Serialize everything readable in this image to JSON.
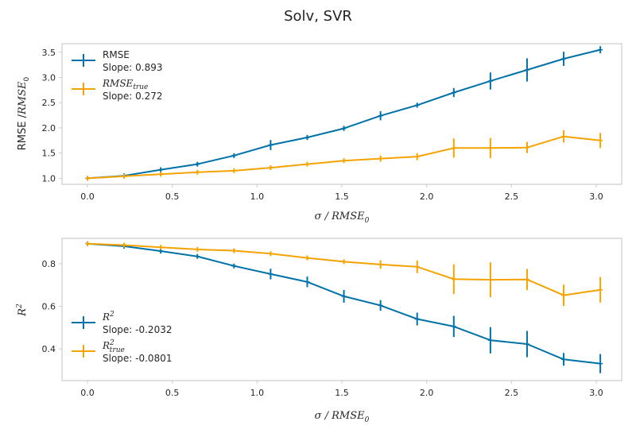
{
  "figure_title": "Solv, SVR",
  "colors": {
    "series_blue": "#0072a8",
    "series_orange": "#f5a300",
    "axes_frame": "#cccccc"
  },
  "chart_data": [
    {
      "type": "line",
      "xlabel": "σ / RMSE₀",
      "ylabel": "RMSE /RMSE₀",
      "xlim": [
        -0.15,
        3.15
      ],
      "ylim": [
        0.88,
        3.67
      ],
      "x_ticks": [
        "0.0",
        "0.5",
        "1.0",
        "1.5",
        "2.0",
        "2.5",
        "3.0"
      ],
      "y_ticks": [
        "1.0",
        "1.5",
        "2.0",
        "2.5",
        "3.0",
        "3.5"
      ],
      "legend_position": "upper left",
      "x": [
        0.0,
        0.216,
        0.432,
        0.648,
        0.864,
        1.08,
        1.296,
        1.512,
        1.728,
        1.944,
        2.16,
        2.376,
        2.592,
        2.808,
        3.024
      ],
      "series": [
        {
          "name": "RMSE",
          "label_math": "RMSE",
          "slope_text": "Slope: 0.893",
          "color": "#0072a8",
          "values": [
            1.0,
            1.05,
            1.17,
            1.28,
            1.45,
            1.66,
            1.81,
            1.99,
            2.24,
            2.45,
            2.7,
            2.93,
            3.15,
            3.37,
            3.55
          ],
          "errors": [
            0.01,
            0.02,
            0.03,
            0.03,
            0.03,
            0.1,
            0.05,
            0.05,
            0.09,
            0.05,
            0.09,
            0.17,
            0.23,
            0.14,
            0.07
          ]
        },
        {
          "name": "RMSE_true",
          "label_math": "RMSEtrue",
          "slope_text": "Slope: 0.272",
          "color": "#f5a300",
          "values": [
            1.0,
            1.04,
            1.08,
            1.12,
            1.15,
            1.21,
            1.28,
            1.35,
            1.39,
            1.43,
            1.6,
            1.6,
            1.61,
            1.83,
            1.75
          ],
          "errors": [
            0.01,
            0.02,
            0.02,
            0.03,
            0.02,
            0.04,
            0.03,
            0.04,
            0.06,
            0.07,
            0.19,
            0.2,
            0.11,
            0.12,
            0.15
          ]
        }
      ]
    },
    {
      "type": "line",
      "xlabel": "σ / RMSE₀",
      "ylabel": "R²",
      "xlim": [
        -0.15,
        3.15
      ],
      "ylim": [
        0.25,
        0.92
      ],
      "x_ticks": [
        "0.0",
        "0.5",
        "1.0",
        "1.5",
        "2.0",
        "2.5",
        "3.0"
      ],
      "y_ticks": [
        "0.4",
        "0.6",
        "0.8"
      ],
      "legend_position": "lower left",
      "x": [
        0.0,
        0.216,
        0.432,
        0.648,
        0.864,
        1.08,
        1.296,
        1.512,
        1.728,
        1.944,
        2.16,
        2.376,
        2.592,
        2.808,
        3.024
      ],
      "series": [
        {
          "name": "R^2",
          "label_math": "R2",
          "slope_text": "Slope: -0.2032",
          "color": "#0072a8",
          "values": [
            0.895,
            0.883,
            0.86,
            0.835,
            0.79,
            0.752,
            0.715,
            0.647,
            0.604,
            0.54,
            0.505,
            0.44,
            0.422,
            0.35,
            0.33
          ],
          "errors": [
            0.004,
            0.005,
            0.006,
            0.01,
            0.006,
            0.025,
            0.025,
            0.03,
            0.025,
            0.03,
            0.05,
            0.062,
            0.062,
            0.03,
            0.045
          ]
        },
        {
          "name": "R^2_true",
          "label_math": "R2true",
          "slope_text": "Slope: -0.0801",
          "color": "#f5a300",
          "values": [
            0.895,
            0.888,
            0.878,
            0.868,
            0.862,
            0.848,
            0.828,
            0.81,
            0.797,
            0.786,
            0.728,
            0.725,
            0.726,
            0.652,
            0.678
          ],
          "errors": [
            0.004,
            0.005,
            0.005,
            0.01,
            0.006,
            0.01,
            0.006,
            0.01,
            0.02,
            0.03,
            0.07,
            0.082,
            0.05,
            0.05,
            0.06
          ]
        }
      ]
    }
  ]
}
